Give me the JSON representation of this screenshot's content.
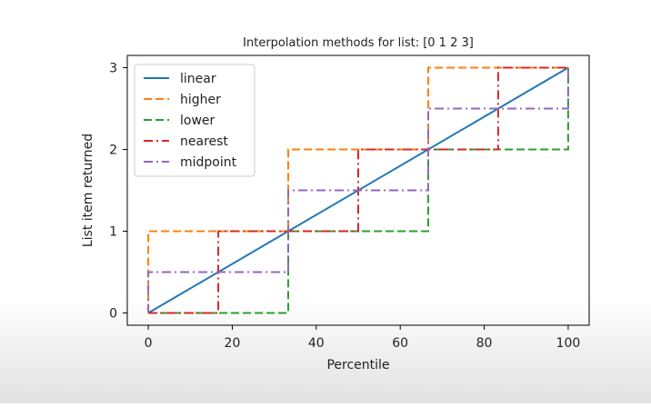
{
  "chart_data": {
    "type": "line",
    "title": "Interpolation methods for list: [0 1 2 3]",
    "xlabel": "Percentile",
    "ylabel": "List item returned",
    "xlim": [
      -5,
      105
    ],
    "ylim": [
      -0.15,
      3.15
    ],
    "xticks": [
      0,
      20,
      40,
      60,
      80,
      100
    ],
    "yticks": [
      0,
      1,
      2,
      3
    ],
    "grid": false,
    "legend_position": "upper-left",
    "series": [
      {
        "name": "linear",
        "color": "#1f77b4",
        "dash": "solid",
        "x": [
          0,
          100
        ],
        "y": [
          0,
          3
        ]
      },
      {
        "name": "higher",
        "color": "#ff7f0e",
        "dash": "dashed",
        "x": [
          0,
          0,
          33.33,
          33.33,
          66.67,
          66.67,
          100,
          100
        ],
        "y": [
          0,
          1,
          1,
          2,
          2,
          3,
          3,
          3
        ]
      },
      {
        "name": "lower",
        "color": "#2ca02c",
        "dash": "dashed",
        "x": [
          0,
          33.33,
          33.33,
          66.67,
          66.67,
          100,
          100
        ],
        "y": [
          0,
          0,
          1,
          1,
          2,
          2,
          3
        ]
      },
      {
        "name": "nearest",
        "color": "#d62728",
        "dash": "dashdot",
        "x": [
          0,
          16.67,
          16.67,
          50,
          50,
          83.33,
          83.33,
          100
        ],
        "y": [
          0,
          0,
          1,
          1,
          2,
          2,
          3,
          3
        ]
      },
      {
        "name": "midpoint",
        "color": "#9467bd",
        "dash": "dashdot",
        "x": [
          0,
          0,
          33.33,
          33.33,
          66.67,
          66.67,
          100,
          100
        ],
        "y": [
          0,
          0.5,
          0.5,
          1.5,
          1.5,
          2.5,
          2.5,
          3
        ]
      }
    ]
  }
}
